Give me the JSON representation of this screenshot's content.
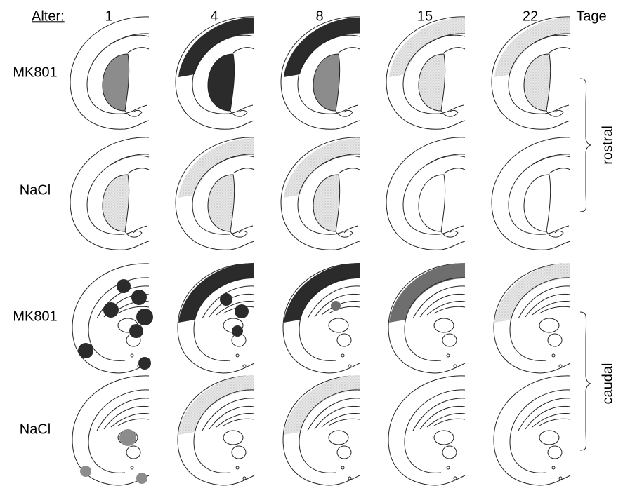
{
  "header": {
    "age_label": "Alter:",
    "ages": [
      "1",
      "4",
      "8",
      "15",
      "22"
    ],
    "unit": "Tage"
  },
  "rows": [
    {
      "label": "MK801"
    },
    {
      "label": "NaCl"
    },
    {
      "label": "MK801"
    },
    {
      "label": "NaCl"
    }
  ],
  "groups": [
    {
      "label": "rostral"
    },
    {
      "label": "caudal"
    }
  ]
}
